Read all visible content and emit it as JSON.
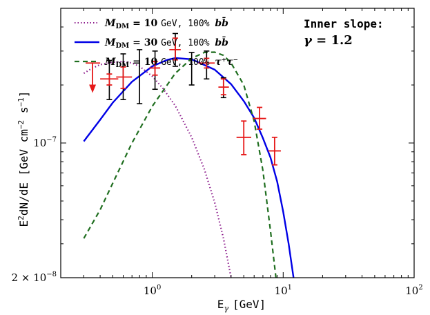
{
  "chart_data": {
    "type": "scatter",
    "xlabel_main": "E",
    "xlabel_sub": "γ",
    "xlabel_unit": "[GeV]",
    "ylabel_prefix": "E",
    "ylabel_mid": "dN/dE [GeV cm",
    "ylabel_end": " s",
    "ylabel_close": "]",
    "xscale": "log",
    "yscale": "log",
    "xlim": [
      0.2,
      100
    ],
    "ylim": [
      2e-08,
      5e-07
    ],
    "x_ticks": [
      {
        "value": 1,
        "base": "10",
        "exp": "0"
      },
      {
        "value": 10,
        "base": "10",
        "exp": "1"
      },
      {
        "value": 100,
        "base": "10",
        "exp": "2"
      }
    ],
    "y_ticks": [
      {
        "value": 1e-07,
        "base": "10",
        "exp": "−7"
      },
      {
        "value": 2e-08,
        "mant": "2 × ",
        "base": "10",
        "exp": "−8"
      }
    ],
    "annotation": {
      "line1": "Inner slope:",
      "line2_sym": "γ",
      "line2_val": " = 1.2"
    },
    "legend": {
      "position": "top-left",
      "entries": [
        {
          "mass_sym": "M",
          "mass_sub": "DM",
          "mass_val": " = 10 ",
          "unit": "GeV, 100% ",
          "channel": "bb̄",
          "style": "dotted",
          "color": "#8b1a8b"
        },
        {
          "mass_sym": "M",
          "mass_sub": "DM",
          "mass_val": " = 30 ",
          "unit": "GeV, 100% ",
          "channel": "bb̄",
          "style": "solid",
          "color": "#0000e6"
        },
        {
          "mass_sym": "M",
          "mass_sub": "DM",
          "mass_val": " = 10 ",
          "unit": "GeV, 100% ",
          "channel": "τ⁺τ⁻",
          "style": "dashed",
          "color": "#1f6e1f"
        }
      ]
    },
    "curves": [
      {
        "style": "dotted",
        "color": "#8b1a8b",
        "points": [
          [
            0.3,
            2.3e-07
          ],
          [
            0.35,
            2.45e-07
          ],
          [
            0.4,
            2.55e-07
          ],
          [
            0.5,
            2.62e-07
          ],
          [
            0.6,
            2.65e-07
          ],
          [
            0.7,
            2.6e-07
          ],
          [
            0.8,
            2.5e-07
          ],
          [
            1.0,
            2.22e-07
          ],
          [
            1.2,
            1.93e-07
          ],
          [
            1.5,
            1.56e-07
          ],
          [
            2.0,
            1.07e-07
          ],
          [
            2.5,
            7.3e-08
          ],
          [
            3.0,
            4.9e-08
          ],
          [
            3.5,
            3.2e-08
          ],
          [
            4.0,
            2e-08
          ]
        ]
      },
      {
        "style": "solid",
        "color": "#0000e6",
        "points": [
          [
            0.3,
            1.02e-07
          ],
          [
            0.4,
            1.32e-07
          ],
          [
            0.5,
            1.62e-07
          ],
          [
            0.7,
            2.08e-07
          ],
          [
            1.0,
            2.5e-07
          ],
          [
            1.3,
            2.7e-07
          ],
          [
            1.5,
            2.76e-07
          ],
          [
            2.0,
            2.72e-07
          ],
          [
            3.0,
            2.4e-07
          ],
          [
            4.0,
            2.02e-07
          ],
          [
            5.0,
            1.65e-07
          ],
          [
            6.0,
            1.35e-07
          ],
          [
            7.0,
            1.06e-07
          ],
          [
            8.0,
            8.4e-08
          ],
          [
            9.0,
            6.3e-08
          ],
          [
            10.0,
            4.4e-08
          ],
          [
            11.0,
            3e-08
          ],
          [
            12.0,
            2e-08
          ]
        ]
      },
      {
        "style": "dashed",
        "color": "#1f6e1f",
        "points": [
          [
            0.3,
            3.2e-08
          ],
          [
            0.4,
            4.5e-08
          ],
          [
            0.5,
            6.2e-08
          ],
          [
            0.7,
            1e-07
          ],
          [
            1.0,
            1.55e-07
          ],
          [
            1.5,
            2.3e-07
          ],
          [
            2.0,
            2.75e-07
          ],
          [
            2.5,
            2.95e-07
          ],
          [
            3.0,
            2.96e-07
          ],
          [
            3.5,
            2.85e-07
          ],
          [
            4.0,
            2.6e-07
          ],
          [
            5.0,
            2e-07
          ],
          [
            6.0,
            1.3e-07
          ],
          [
            7.0,
            7.2e-08
          ],
          [
            8.0,
            3.5e-08
          ],
          [
            8.8,
            2e-08
          ]
        ]
      }
    ],
    "series": [
      {
        "name": "",
        "color": "#000000",
        "kind": "stat",
        "points": [
          {
            "x": 0.47,
            "y": 2.15e-07,
            "ylo": 1.68e-07,
            "yhi": 2.68e-07
          },
          {
            "x": 0.6,
            "y": 2.2e-07,
            "ylo": 1.68e-07,
            "yhi": 2.9e-07
          },
          {
            "x": 0.8,
            "y": 2.2e-07,
            "ylo": 1.6e-07,
            "yhi": 3.05e-07
          },
          {
            "x": 1.05,
            "y": 2.45e-07,
            "ylo": 1.9e-07,
            "yhi": 3e-07
          },
          {
            "x": 1.5,
            "y": 3.05e-07,
            "ylo": 2.5e-07,
            "yhi": 3.7e-07
          },
          {
            "x": 2.0,
            "y": 2.45e-07,
            "ylo": 2e-07,
            "yhi": 2.95e-07
          },
          {
            "x": 2.6,
            "y": 2.55e-07,
            "ylo": 2.15e-07,
            "yhi": 3e-07
          },
          {
            "x": 3.5,
            "y": 1.92e-07,
            "ylo": 1.72e-07,
            "yhi": 2.18e-07
          }
        ]
      },
      {
        "name": "",
        "color": "#e61919",
        "kind": "sys",
        "points": [
          {
            "x": 0.47,
            "y": 2.15e-07,
            "ylo": 2e-07,
            "yhi": 2.28e-07,
            "xlo": 0.4,
            "xhi": 0.55
          },
          {
            "x": 0.6,
            "y": 2.2e-07,
            "ylo": 1.92e-07,
            "yhi": 2.48e-07,
            "xlo": 0.53,
            "xhi": 0.7
          },
          {
            "x": 1.05,
            "y": 2.45e-07,
            "ylo": 2.25e-07,
            "yhi": 2.65e-07,
            "xlo": 0.95,
            "xhi": 1.15
          },
          {
            "x": 1.5,
            "y": 3.05e-07,
            "ylo": 2.7e-07,
            "yhi": 3.5e-07,
            "xlo": 1.35,
            "xhi": 1.65
          },
          {
            "x": 2.6,
            "y": 2.6e-07,
            "ylo": 2.45e-07,
            "yhi": 2.75e-07,
            "xlo": 2.25,
            "xhi": 3.0
          },
          {
            "x": 3.5,
            "y": 1.95e-07,
            "ylo": 1.78e-07,
            "yhi": 2.15e-07,
            "xlo": 3.2,
            "xhi": 3.85
          },
          {
            "x": 5.0,
            "y": 1.07e-07,
            "ylo": 8.7e-08,
            "yhi": 1.3e-07,
            "xlo": 4.4,
            "xhi": 5.7
          },
          {
            "x": 6.6,
            "y": 1.34e-07,
            "ylo": 1.18e-07,
            "yhi": 1.53e-07,
            "xlo": 5.9,
            "xhi": 7.4
          },
          {
            "x": 8.6,
            "y": 9.1e-08,
            "ylo": 7.7e-08,
            "yhi": 1.07e-07,
            "xlo": 7.7,
            "xhi": 9.6
          }
        ]
      },
      {
        "name": "",
        "color": "#e61919",
        "kind": "upper-limit",
        "points": [
          {
            "x": 0.35,
            "y": 2.6e-07,
            "xlo": 0.31,
            "xhi": 0.4,
            "arrow_to": 1.85e-07
          }
        ]
      }
    ]
  }
}
